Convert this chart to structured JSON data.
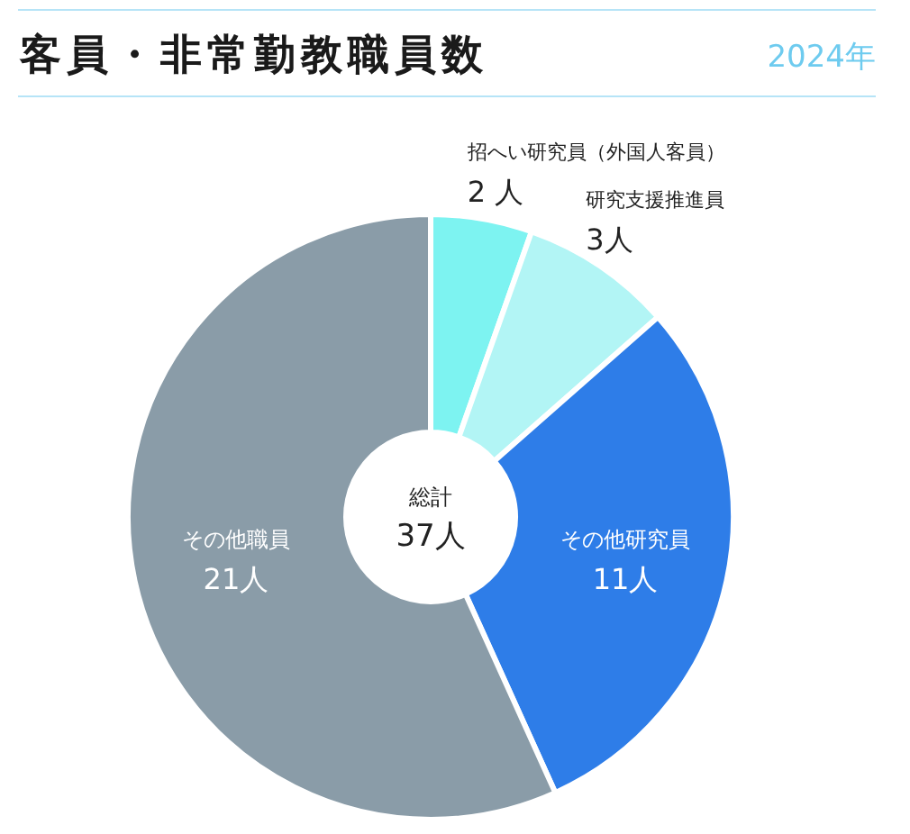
{
  "chart_data": {
    "type": "donut",
    "title": "客員・非常勤教職員数",
    "subtitle": "2024年",
    "categories": [
      "招へい研究員（外国人客員）",
      "研究支援推進員",
      "その他研究員",
      "その他職員"
    ],
    "values": [
      2,
      3,
      11,
      21
    ],
    "colors": [
      "#7df3f1",
      "#b2f5f5",
      "#2e7de8",
      "#8a9ca8"
    ],
    "value_labels": [
      "2 人",
      "3人",
      "11人",
      "21人"
    ],
    "annotations": [
      "総計",
      "37人"
    ]
  }
}
